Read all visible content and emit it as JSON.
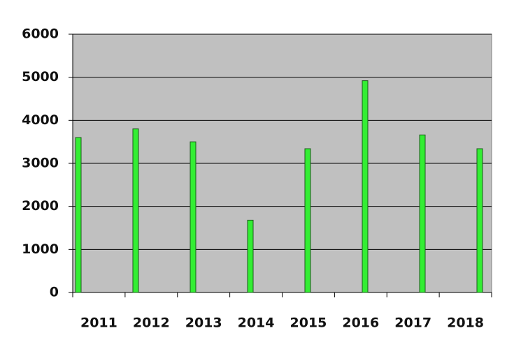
{
  "chart_data": {
    "type": "bar",
    "categories": [
      "2011",
      "2012",
      "2013",
      "2014",
      "2015",
      "2016",
      "2017",
      "2018"
    ],
    "values": [
      3600,
      3800,
      3500,
      1680,
      3340,
      4920,
      3660,
      3340
    ],
    "color": "#33ee33",
    "ylim": [
      0,
      6000
    ],
    "yticks": [
      0,
      1000,
      2000,
      3000,
      4000,
      5000,
      6000
    ],
    "grid": true
  }
}
